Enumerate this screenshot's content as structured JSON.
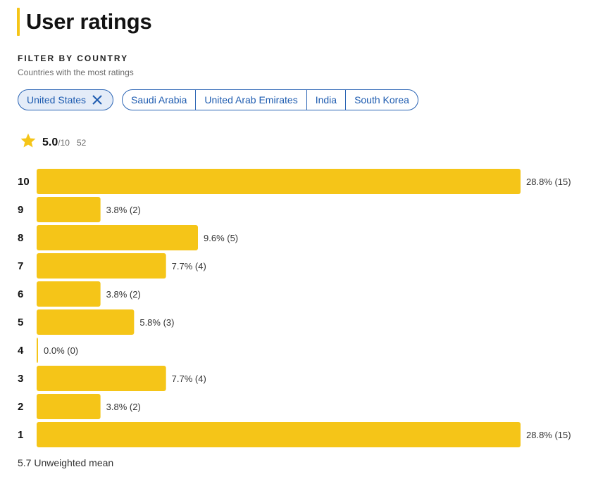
{
  "title": "User ratings",
  "filter": {
    "label": "FILTER BY COUNTRY",
    "subtitle": "Countries with the most ratings",
    "selected": "United States",
    "options": [
      "Saudi Arabia",
      "United Arab Emirates",
      "India",
      "South Korea"
    ]
  },
  "summary": {
    "score": "5.0",
    "max": "/10",
    "count": "52",
    "icon": "star-icon"
  },
  "colors": {
    "bar": "#f5c518",
    "accent": "#2a64b4",
    "chip_bg": "#e4ecf8"
  },
  "chart_data": {
    "type": "bar",
    "orientation": "horizontal",
    "categories": [
      "10",
      "9",
      "8",
      "7",
      "6",
      "5",
      "4",
      "3",
      "2",
      "1"
    ],
    "values": [
      28.8,
      3.8,
      9.6,
      7.7,
      3.8,
      5.8,
      0.0,
      7.7,
      3.8,
      28.8
    ],
    "counts": [
      15,
      2,
      5,
      4,
      2,
      3,
      0,
      4,
      2,
      15
    ],
    "labels": [
      "28.8% (15)",
      "3.8% (2)",
      "9.6% (5)",
      "7.7% (4)",
      "3.8% (2)",
      "5.8% (3)",
      "0.0% (0)",
      "7.7% (4)",
      "3.8% (2)",
      "28.8% (15)"
    ],
    "xlim": [
      0,
      28.8
    ],
    "grid": false,
    "footer": "5.7 Unweighted mean"
  }
}
